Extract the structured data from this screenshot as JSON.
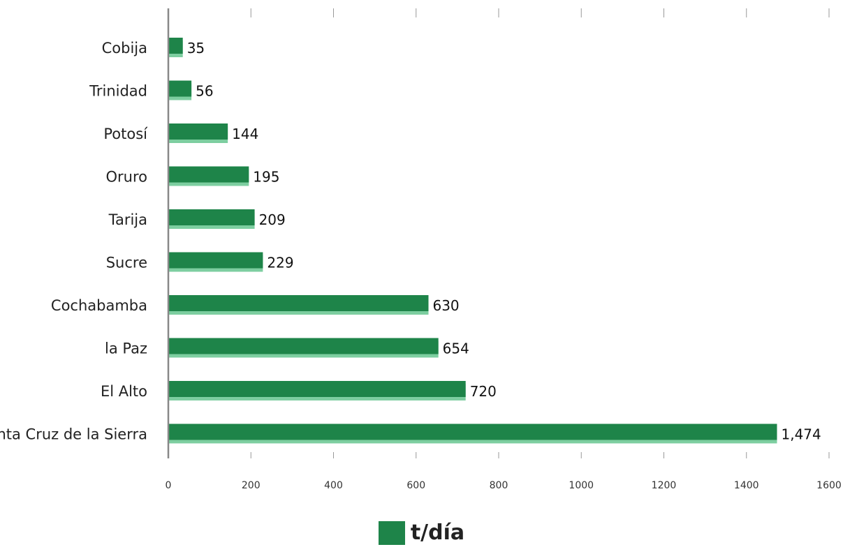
{
  "chart_data": {
    "type": "bar",
    "orientation": "horizontal",
    "categories": [
      "Cobija",
      "Trinidad",
      "Potosí",
      "Oruro",
      "Tarija",
      "Sucre",
      "Cochabamba",
      "la Paz",
      "El Alto",
      "Santa Cruz de la Sierra"
    ],
    "values": [
      35,
      56,
      144,
      195,
      209,
      229,
      630,
      654,
      720,
      1474
    ],
    "value_labels": [
      "35",
      "56",
      "144",
      "195",
      "209",
      "229",
      "630",
      "654",
      "720",
      "1,474"
    ],
    "series": [
      {
        "name": "t/día",
        "values": [
          35,
          56,
          144,
          195,
          209,
          229,
          630,
          654,
          720,
          1474
        ]
      }
    ],
    "xlim": [
      0,
      1600
    ],
    "xticks": [
      0,
      200,
      400,
      600,
      800,
      1000,
      1200,
      1400,
      1600
    ],
    "xtick_labels": [
      "0",
      "200",
      "400",
      "600",
      "800",
      "1000",
      "1200",
      "1400",
      "1600"
    ],
    "title": "",
    "xlabel": "",
    "ylabel": "",
    "grid": false,
    "legend_position": "bottom-center",
    "colors": {
      "bar": "#1e8449",
      "bar_shadow": "#7dcea0",
      "axis": "#888888"
    }
  },
  "legend": {
    "label": "t/día"
  }
}
